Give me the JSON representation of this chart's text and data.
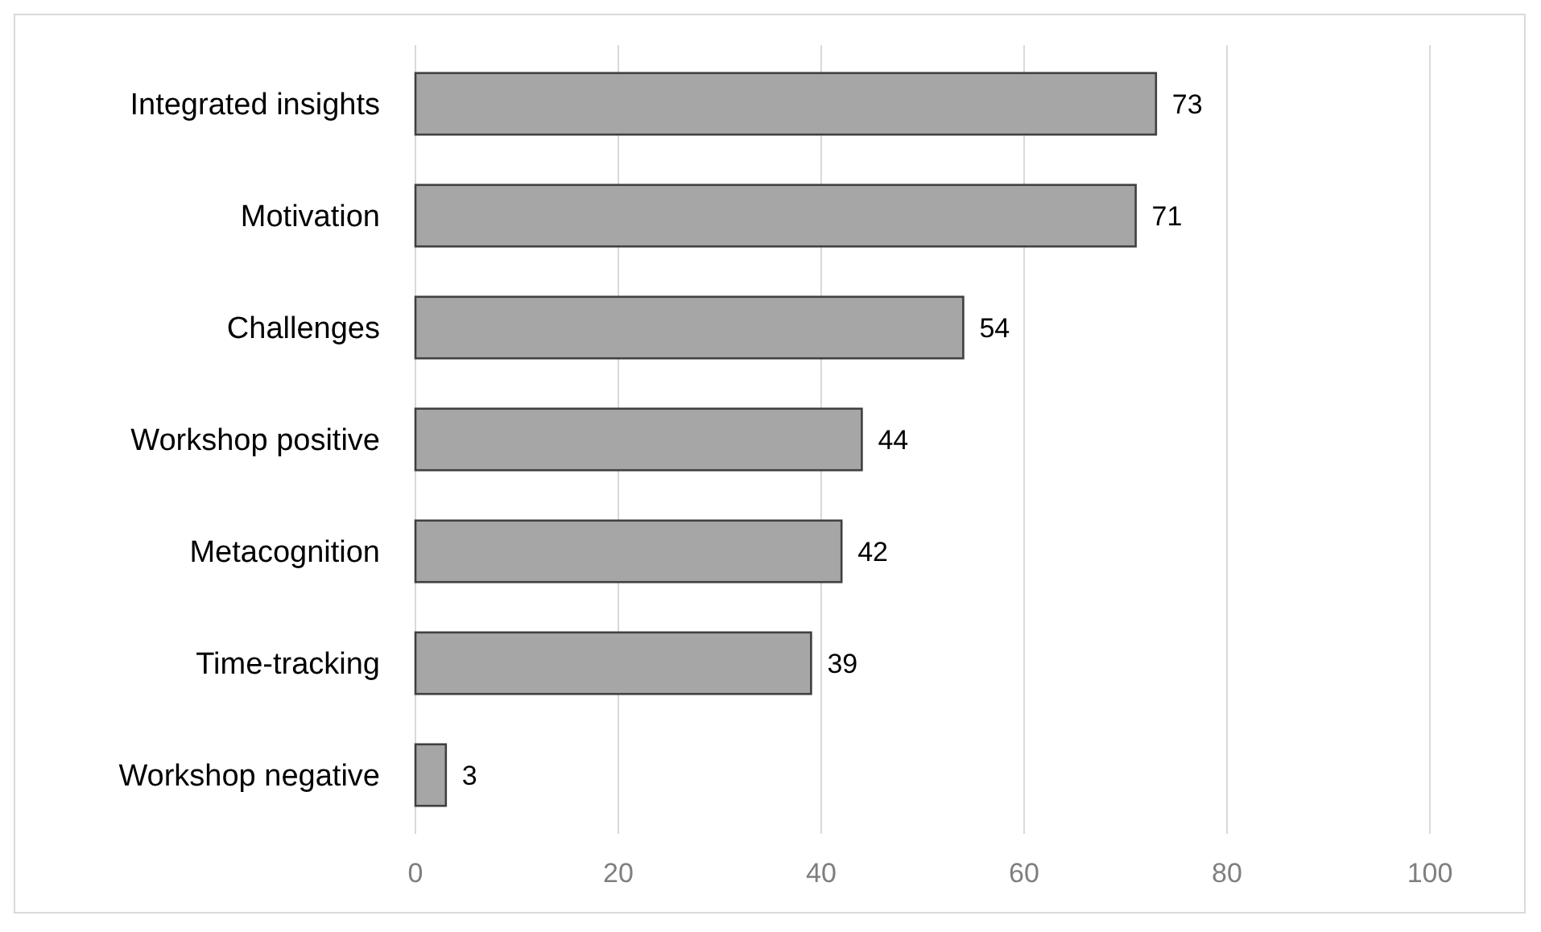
{
  "chart_data": {
    "type": "bar",
    "orientation": "horizontal",
    "categories": [
      "Integrated insights",
      "Motivation",
      "Challenges",
      "Workshop positive",
      "Metacognition",
      "Time-tracking",
      "Workshop negative"
    ],
    "values": [
      73,
      71,
      54,
      44,
      42,
      39,
      3
    ],
    "color": "#a6a6a6",
    "xlim": [
      0,
      100
    ],
    "xticks": [
      0,
      20,
      40,
      60,
      80,
      100
    ],
    "grid": "x",
    "data_labels": true
  }
}
